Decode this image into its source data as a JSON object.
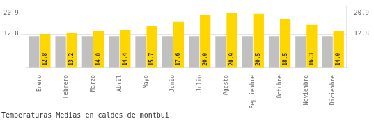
{
  "chart_data": {
    "type": "bar",
    "title": "Temperaturas Medias en caldes de montbui",
    "categories": [
      "Enero",
      "Febrero",
      "Marzo",
      "Abril",
      "Mayo",
      "Junio",
      "Julio",
      "Agosto",
      "Septiembre",
      "Octubre",
      "Noviembre",
      "Diciembre"
    ],
    "series": [
      {
        "color": "#C0C0C0",
        "values": [
          12.0,
          12.0,
          12.0,
          12.0,
          12.0,
          12.0,
          12.0,
          12.0,
          12.0,
          12.0,
          12.0,
          12.0
        ]
      },
      {
        "color": "#FFD700",
        "values": [
          12.8,
          13.2,
          14.0,
          14.4,
          15.7,
          17.6,
          20.0,
          20.9,
          20.5,
          18.5,
          16.3,
          14.0
        ],
        "value_labels": [
          "12.8",
          "13.2",
          "14.0",
          "14.4",
          "15.7",
          "17.6",
          "20.0",
          "20.9",
          "20.5",
          "18.5",
          "16.3",
          "14.0"
        ],
        "data_labels": true
      }
    ],
    "ylim": [
      0.0,
      23.5
    ],
    "yticks": [
      12.8,
      20.9
    ],
    "y2lim": [
      0.0,
      23.5
    ],
    "y2ticks": [
      12.8,
      20.9
    ],
    "grid": true
  }
}
